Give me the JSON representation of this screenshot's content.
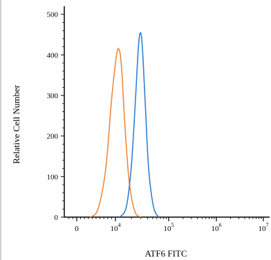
{
  "chart_data": {
    "type": "line",
    "title": "",
    "xlabel": "ATF6 FITC",
    "ylabel": "Relative Cell Number",
    "x_scale": "biexponential",
    "x_ticks": [
      {
        "value": 0,
        "label": "0",
        "sup": ""
      },
      {
        "value": 10000,
        "label": "10",
        "sup": "4"
      },
      {
        "value": 100000,
        "label": "10",
        "sup": "5"
      },
      {
        "value": 1000000,
        "label": "10",
        "sup": "6"
      },
      {
        "value": 10000000,
        "label": "10",
        "sup": "7"
      }
    ],
    "y_ticks": [
      0,
      100,
      200,
      300,
      400,
      500
    ],
    "ylim": [
      0,
      520
    ],
    "grid": false,
    "series": [
      {
        "color": "#f08a3c",
        "x": [
          3500,
          5500,
          7500,
          9000,
          10500,
          11800,
          13000,
          15000,
          18000,
          23000,
          30000
        ],
        "y": [
          0,
          20,
          120,
          290,
          400,
          412,
          370,
          230,
          90,
          15,
          0
        ]
      },
      {
        "color": "#2f7fd6",
        "x": [
          12000,
          16000,
          20000,
          24000,
          27000,
          29500,
          32000,
          36000,
          42000,
          52000,
          65000
        ],
        "y": [
          0,
          25,
          130,
          300,
          420,
          455,
          420,
          290,
          120,
          25,
          0
        ]
      }
    ]
  }
}
